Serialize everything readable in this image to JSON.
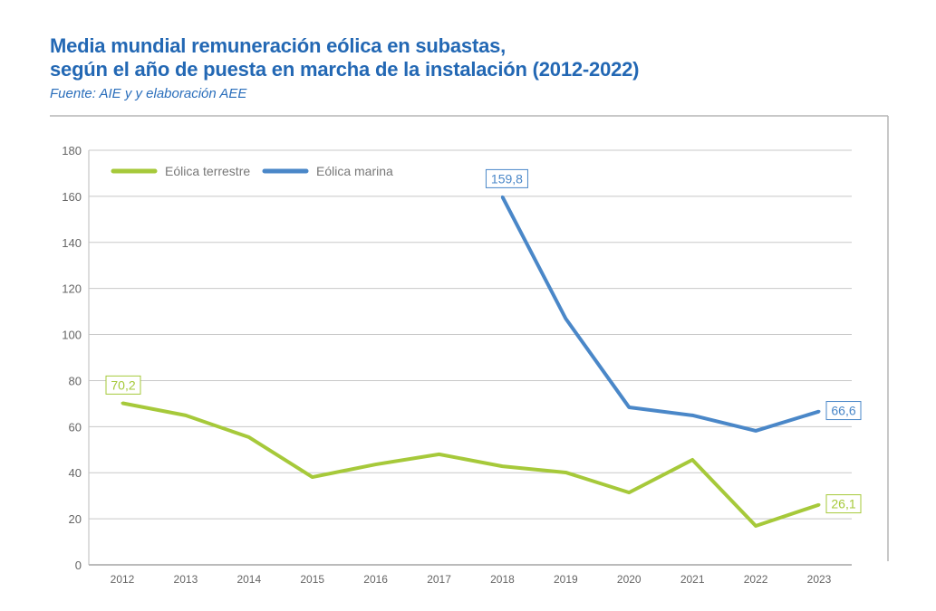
{
  "chart_data": {
    "type": "line",
    "title": "Media mundial remuneración eólica en subastas,",
    "title_line2": "según el año de puesta en marcha de la instalación (2012-2022)",
    "subtitle": "Fuente: AIE y y elaboración AEE",
    "xlabel": "",
    "ylabel": "",
    "ylim": [
      0,
      180
    ],
    "yticks": [
      0,
      20,
      40,
      60,
      80,
      100,
      120,
      140,
      160,
      180
    ],
    "ytick_labels": [
      "0",
      "20",
      "40",
      "60",
      "80",
      "100",
      "120",
      "140",
      "160",
      "180"
    ],
    "categories": [
      "2012",
      "2013",
      "2014",
      "2015",
      "2016",
      "2017",
      "2018",
      "2019",
      "2020",
      "2021",
      "2022",
      "2023"
    ],
    "grid": true,
    "legend_position": "top-left",
    "series": [
      {
        "name": "Eólica terrestre",
        "color": "#a6c93a",
        "values": [
          70.2,
          64.9,
          55.4,
          38.1,
          43.6,
          48.0,
          42.8,
          40.1,
          31.4,
          45.6,
          16.9,
          26.1
        ],
        "labels": [
          {
            "index": 0,
            "text": "70,2"
          },
          {
            "index": 11,
            "text": "26,1"
          }
        ]
      },
      {
        "name": "Eólica marina",
        "color": "#4a87c8",
        "values": [
          null,
          null,
          null,
          null,
          null,
          null,
          159.8,
          106.9,
          68.4,
          64.9,
          58.2,
          66.6
        ],
        "labels": [
          {
            "index": 6,
            "text": "159,8"
          },
          {
            "index": 11,
            "text": "66,6"
          }
        ]
      }
    ]
  }
}
